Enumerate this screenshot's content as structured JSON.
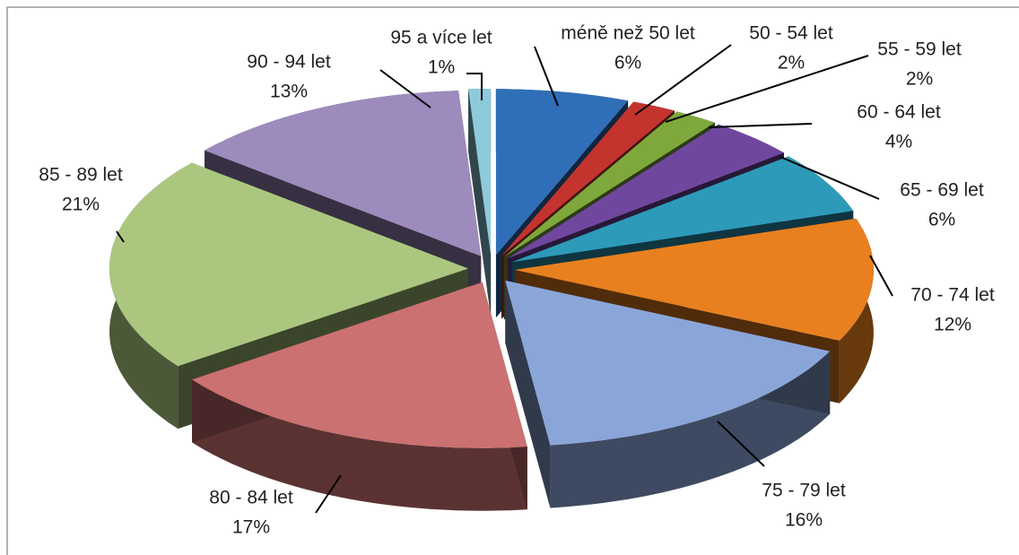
{
  "chart_data": {
    "type": "pie3d",
    "categories": [
      "méně než 50 let",
      "50 - 54 let",
      "55 - 59 let",
      "60 - 64 let",
      "65 - 69 let",
      "70 - 74 let",
      "75 - 79 let",
      "80 - 84 let",
      "85 - 89 let",
      "90 - 94 let",
      "95 a více let"
    ],
    "values": [
      6,
      2,
      2,
      4,
      6,
      12,
      16,
      17,
      21,
      13,
      1
    ],
    "value_labels": [
      "6%",
      "2%",
      "2%",
      "4%",
      "6%",
      "12%",
      "16%",
      "17%",
      "21%",
      "13%",
      "1%"
    ],
    "colors": [
      "#2f6fb8",
      "#c3342f",
      "#7ea83c",
      "#70479e",
      "#2d9ab9",
      "#e8801f",
      "#8aa6d9",
      "#cb7171",
      "#abc77f",
      "#9d8bbd",
      "#8ecadb"
    ]
  }
}
